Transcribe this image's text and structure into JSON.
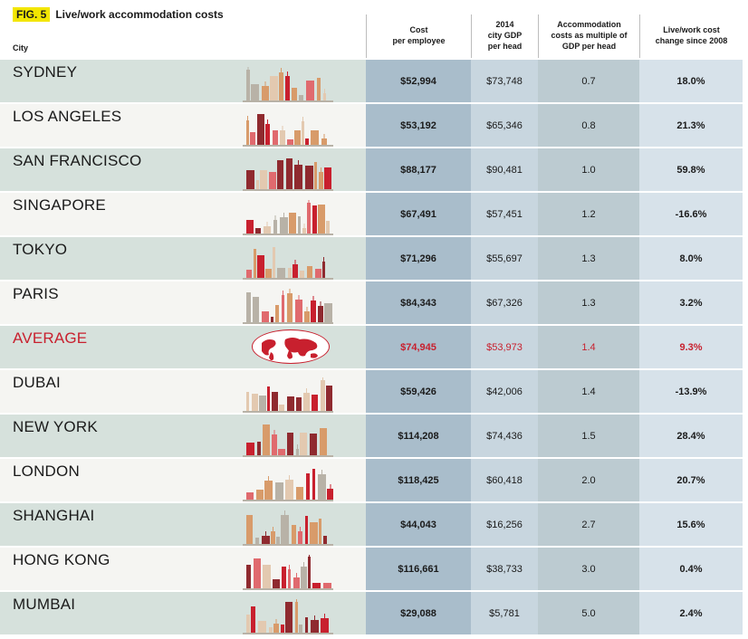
{
  "figure": {
    "tag": "FIG. 5",
    "title": "Live/work accommodation costs"
  },
  "columns": {
    "city": "City",
    "cost": "Cost\nper employee",
    "gdp": "2014\ncity GDP\nper head",
    "multiple": "Accommodation\ncosts as multiple of\nGDP per head",
    "change": "Live/work cost\nchange since 2008"
  },
  "rows": [
    {
      "city": "SYDNEY",
      "cost": "$52,994",
      "gdp": "$73,748",
      "multiple": "0.7",
      "change": "18.0%"
    },
    {
      "city": "LOS ANGELES",
      "cost": "$53,192",
      "gdp": "$65,346",
      "multiple": "0.8",
      "change": "21.3%"
    },
    {
      "city": "SAN FRANCISCO",
      "cost": "$88,177",
      "gdp": "$90,481",
      "multiple": "1.0",
      "change": "59.8%"
    },
    {
      "city": "SINGAPORE",
      "cost": "$67,491",
      "gdp": "$57,451",
      "multiple": "1.2",
      "change": "-16.6%"
    },
    {
      "city": "TOKYO",
      "cost": "$71,296",
      "gdp": "$55,697",
      "multiple": "1.3",
      "change": "8.0%"
    },
    {
      "city": "PARIS",
      "cost": "$84,343",
      "gdp": "$67,326",
      "multiple": "1.3",
      "change": "3.2%"
    },
    {
      "city": "AVERAGE",
      "cost": "$74,945",
      "gdp": "$53,973",
      "multiple": "1.4",
      "change": "9.3%"
    },
    {
      "city": "DUBAI",
      "cost": "$59,426",
      "gdp": "$42,006",
      "multiple": "1.4",
      "change": "-13.9%"
    },
    {
      "city": "NEW YORK",
      "cost": "$114,208",
      "gdp": "$74,436",
      "multiple": "1.5",
      "change": "28.4%"
    },
    {
      "city": "LONDON",
      "cost": "$118,425",
      "gdp": "$60,418",
      "multiple": "2.0",
      "change": "20.7%"
    },
    {
      "city": "SHANGHAI",
      "cost": "$44,043",
      "gdp": "$16,256",
      "multiple": "2.7",
      "change": "15.6%"
    },
    {
      "city": "HONG KONG",
      "cost": "$116,661",
      "gdp": "$38,733",
      "multiple": "3.0",
      "change": "0.4%"
    },
    {
      "city": "MUMBAI",
      "cost": "$29,088",
      "gdp": "$5,781",
      "multiple": "5.0",
      "change": "2.4%"
    }
  ],
  "colors": {
    "highlight": "#f3e600",
    "accent_red": "#c8202e",
    "row_green": "#d6e1dc",
    "row_light": "#f5f5f2",
    "col_cost": "#a9bdcb",
    "col_gdp": "#c8d6df",
    "col_multiple": "#bccbd1",
    "col_change": "#d7e2ea"
  }
}
